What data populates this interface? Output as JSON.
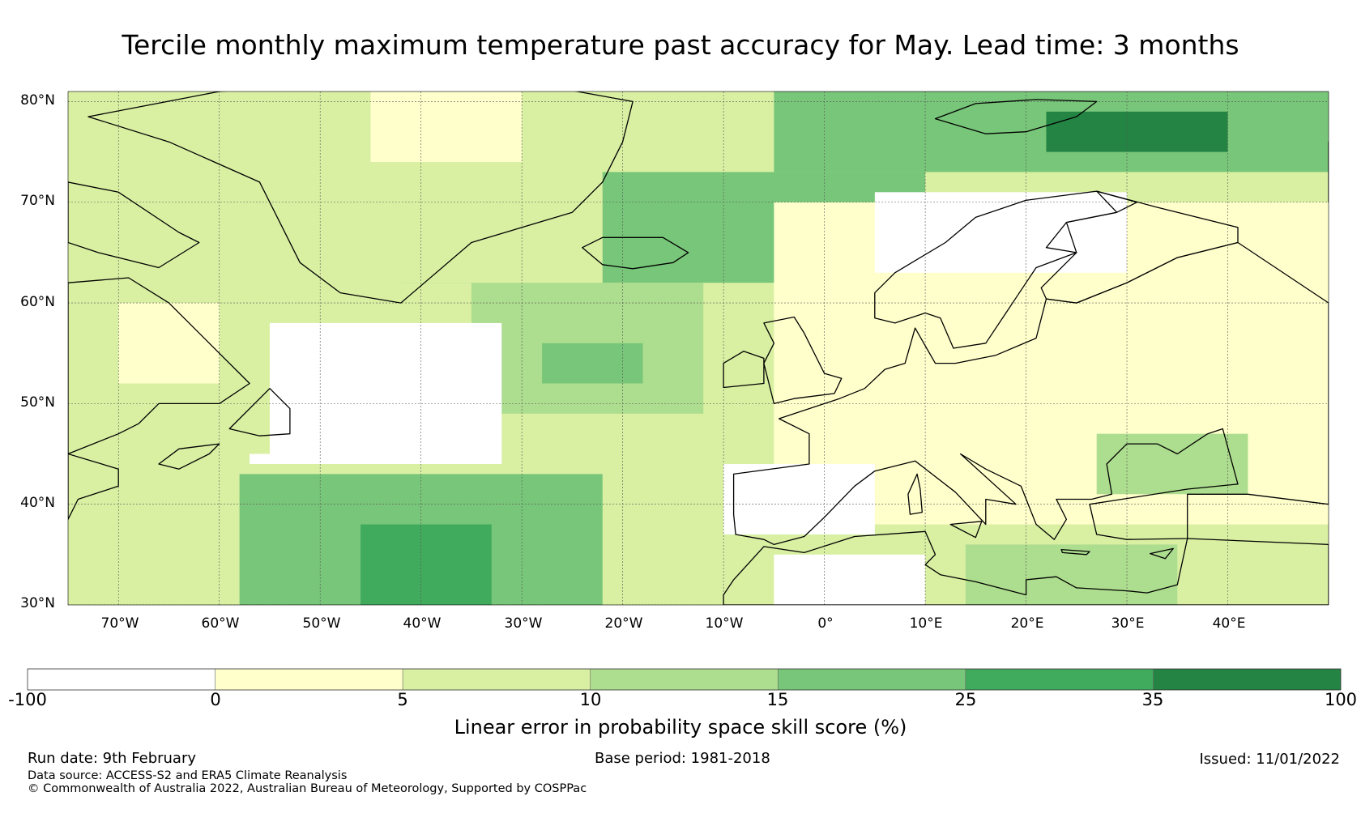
{
  "title": "Tercile monthly maximum temperature past accuracy for May. Lead time: 3 months",
  "map": {
    "extent": {
      "lon_min": -75,
      "lon_max": 50,
      "lat_min": 30,
      "lat_max": 81
    },
    "lat_labels": [
      "80°N",
      "70°N",
      "60°N",
      "50°N",
      "40°N",
      "30°N"
    ],
    "lon_labels": [
      "70°W",
      "60°W",
      "50°W",
      "40°W",
      "30°W",
      "20°W",
      "10°W",
      "0°",
      "10°E",
      "20°E",
      "30°E",
      "40°E"
    ],
    "regions": [
      {
        "name": "north-greenland-sea",
        "level": 4,
        "lon": [
          -5,
          50
        ],
        "lat": [
          73,
          81
        ]
      },
      {
        "name": "barents-core",
        "level": 6,
        "lon": [
          22,
          40
        ],
        "lat": [
          75,
          79
        ]
      },
      {
        "name": "east-greenland-band",
        "level": 4,
        "lon": [
          -42,
          10
        ],
        "lat": [
          62,
          73
        ]
      },
      {
        "name": "mid-atlantic",
        "level": 3,
        "lon": [
          -35,
          -12
        ],
        "lat": [
          49,
          62
        ]
      },
      {
        "name": "mid-atlantic-core",
        "level": 4,
        "lon": [
          -28,
          -18
        ],
        "lat": [
          52,
          56
        ]
      },
      {
        "name": "atlantic-white",
        "level": 0,
        "lon": [
          -57,
          -32
        ],
        "lat": [
          44,
          58
        ]
      },
      {
        "name": "subtropical-atlantic",
        "level": 4,
        "lon": [
          -58,
          -22
        ],
        "lat": [
          30,
          43
        ]
      },
      {
        "name": "subtropical-core",
        "level": 5,
        "lon": [
          -46,
          -33
        ],
        "lat": [
          30,
          38
        ]
      },
      {
        "name": "europe-yellow",
        "level": 1,
        "lon": [
          -5,
          50
        ],
        "lat": [
          38,
          70
        ]
      },
      {
        "name": "scandinavia-white",
        "level": 0,
        "lon": [
          5,
          30
        ],
        "lat": [
          63,
          71
        ]
      },
      {
        "name": "iberia-white",
        "level": 0,
        "lon": [
          -10,
          5
        ],
        "lat": [
          37,
          44
        ]
      },
      {
        "name": "north-africa-white",
        "level": 0,
        "lon": [
          -5,
          10
        ],
        "lat": [
          30,
          35
        ]
      },
      {
        "name": "med-east",
        "level": 3,
        "lon": [
          14,
          35
        ],
        "lat": [
          30,
          36
        ]
      },
      {
        "name": "black-sea",
        "level": 3,
        "lon": [
          27,
          42
        ],
        "lat": [
          41,
          47
        ]
      },
      {
        "name": "labrador",
        "level": 2,
        "lon": [
          -75,
          -55
        ],
        "lat": [
          45,
          81
        ]
      },
      {
        "name": "labrador-yellow",
        "level": 1,
        "lon": [
          -70,
          -60
        ],
        "lat": [
          52,
          60
        ]
      },
      {
        "name": "greenland-inland",
        "level": 2,
        "lon": [
          -55,
          -22
        ],
        "lat": [
          62,
          81
        ]
      },
      {
        "name": "greenland-yellow",
        "level": 1,
        "lon": [
          -45,
          -30
        ],
        "lat": [
          74,
          81
        ]
      }
    ],
    "land": [
      {
        "name": "greenland",
        "points": [
          [
            -73,
            78.5
          ],
          [
            -60,
            81
          ],
          [
            -45,
            82
          ],
          [
            -30,
            82
          ],
          [
            -19,
            80
          ],
          [
            -20,
            76
          ],
          [
            -22,
            72
          ],
          [
            -25,
            69
          ],
          [
            -35,
            66
          ],
          [
            -42,
            60
          ],
          [
            -48,
            61
          ],
          [
            -52,
            64
          ],
          [
            -54,
            68
          ],
          [
            -56,
            72
          ],
          [
            -65,
            76
          ]
        ]
      },
      {
        "name": "labrador-quebec",
        "points": [
          [
            -75,
            62
          ],
          [
            -69,
            62.5
          ],
          [
            -65,
            60
          ],
          [
            -61,
            56
          ],
          [
            -57,
            52
          ],
          [
            -60,
            50
          ],
          [
            -66,
            50
          ],
          [
            -68,
            48
          ],
          [
            -70,
            47
          ],
          [
            -75,
            45
          ]
        ]
      },
      {
        "name": "baffin",
        "points": [
          [
            -75,
            72
          ],
          [
            -70,
            71
          ],
          [
            -64,
            67
          ],
          [
            -62,
            66
          ],
          [
            -66,
            63.5
          ],
          [
            -72,
            65
          ],
          [
            -75,
            66
          ]
        ]
      },
      {
        "name": "nova-scotia",
        "points": [
          [
            -66,
            44
          ],
          [
            -64,
            45.5
          ],
          [
            -60,
            46
          ],
          [
            -61,
            45
          ],
          [
            -64,
            43.5
          ]
        ]
      },
      {
        "name": "newfoundland",
        "points": [
          [
            -59,
            47.5
          ],
          [
            -55,
            51.5
          ],
          [
            -53,
            49.5
          ],
          [
            -53,
            47
          ],
          [
            -56,
            46.8
          ]
        ]
      },
      {
        "name": "usa-coast",
        "points": [
          [
            -75,
            45
          ],
          [
            -70,
            43.5
          ],
          [
            -70,
            41.8
          ],
          [
            -74,
            40.5
          ],
          [
            -75,
            38.5
          ]
        ]
      },
      {
        "name": "iceland",
        "points": [
          [
            -24,
            65.5
          ],
          [
            -22,
            66.5
          ],
          [
            -16,
            66.5
          ],
          [
            -13.5,
            65
          ],
          [
            -15,
            64
          ],
          [
            -19,
            63.4
          ],
          [
            -22,
            63.8
          ]
        ]
      },
      {
        "name": "svalbard",
        "points": [
          [
            11,
            78.3
          ],
          [
            15,
            79.8
          ],
          [
            21,
            80.2
          ],
          [
            27,
            80
          ],
          [
            25,
            78.5
          ],
          [
            20,
            77
          ],
          [
            16,
            76.8
          ]
        ]
      },
      {
        "name": "scandinavia",
        "points": [
          [
            5,
            58.5
          ],
          [
            5,
            61
          ],
          [
            7,
            63
          ],
          [
            12,
            66
          ],
          [
            15,
            68.5
          ],
          [
            20,
            70.2
          ],
          [
            27,
            71.1
          ],
          [
            31,
            70
          ],
          [
            29,
            69
          ],
          [
            24,
            68
          ],
          [
            22,
            65.5
          ],
          [
            25,
            65
          ],
          [
            21,
            63.5
          ],
          [
            19,
            60.5
          ],
          [
            18,
            59
          ],
          [
            16,
            56
          ],
          [
            12.8,
            55.5
          ],
          [
            11.5,
            58.5
          ],
          [
            10,
            59
          ],
          [
            7,
            58
          ]
        ]
      },
      {
        "name": "finland-russia",
        "points": [
          [
            27,
            71.1
          ],
          [
            33,
            69.5
          ],
          [
            41,
            67.5
          ],
          [
            41,
            66
          ],
          [
            35,
            64.5
          ],
          [
            30,
            62
          ],
          [
            25,
            60
          ],
          [
            22,
            60.4
          ],
          [
            21.5,
            61.5
          ],
          [
            25,
            65
          ],
          [
            24,
            68
          ],
          [
            29,
            69
          ]
        ]
      },
      {
        "name": "britain",
        "points": [
          [
            -5,
            50
          ],
          [
            -6,
            54
          ],
          [
            -5,
            56
          ],
          [
            -6,
            58
          ],
          [
            -3,
            58.6
          ],
          [
            -2,
            57
          ],
          [
            0,
            53
          ],
          [
            1.7,
            52.5
          ],
          [
            1,
            51
          ],
          [
            -3,
            50.5
          ]
        ]
      },
      {
        "name": "ireland",
        "points": [
          [
            -10,
            51.6
          ],
          [
            -10,
            54
          ],
          [
            -8,
            55.2
          ],
          [
            -6,
            54.5
          ],
          [
            -6,
            52
          ]
        ]
      },
      {
        "name": "europe-main",
        "points": [
          [
            -4.5,
            48.5
          ],
          [
            -1.5,
            47
          ],
          [
            -1.5,
            44
          ],
          [
            -9,
            43
          ],
          [
            -9,
            39
          ],
          [
            -8.8,
            37
          ],
          [
            -6,
            36.5
          ],
          [
            -5,
            36
          ],
          [
            -2,
            36.8
          ],
          [
            0,
            38.7
          ],
          [
            3,
            41.8
          ],
          [
            5,
            43.3
          ],
          [
            9,
            44.3
          ],
          [
            13,
            41.2
          ],
          [
            16,
            38
          ],
          [
            16,
            40.5
          ],
          [
            19,
            40
          ],
          [
            13.5,
            45
          ],
          [
            16,
            43.5
          ],
          [
            19.5,
            41.8
          ],
          [
            21,
            38
          ],
          [
            22.8,
            36.5
          ],
          [
            24,
            38.5
          ],
          [
            23,
            40.5
          ],
          [
            26.5,
            40.5
          ],
          [
            28.5,
            41
          ],
          [
            28,
            44
          ],
          [
            30,
            46
          ],
          [
            33,
            46
          ],
          [
            35,
            45
          ],
          [
            38,
            47
          ],
          [
            39.5,
            47.5
          ],
          [
            41,
            42
          ],
          [
            36,
            41.5
          ],
          [
            26.3,
            40
          ],
          [
            27,
            37
          ],
          [
            30,
            36.5
          ],
          [
            36,
            36.6
          ],
          [
            36,
            41
          ],
          [
            42,
            41
          ],
          [
            50,
            40
          ],
          [
            50,
            60
          ],
          [
            41,
            66
          ],
          [
            35,
            64.5
          ],
          [
            30,
            62
          ],
          [
            25,
            60
          ],
          [
            22,
            60.4
          ],
          [
            21,
            56.5
          ],
          [
            17,
            54.8
          ],
          [
            13,
            54
          ],
          [
            11,
            54
          ],
          [
            9,
            57.5
          ],
          [
            8,
            54
          ],
          [
            6,
            53.4
          ],
          [
            4,
            51.5
          ],
          [
            1.5,
            50.5
          ],
          [
            -1.5,
            49.5
          ]
        ]
      },
      {
        "name": "north-africa",
        "points": [
          [
            -10,
            30
          ],
          [
            -10,
            31
          ],
          [
            -9,
            32.5
          ],
          [
            -6,
            35.8
          ],
          [
            -2,
            35.2
          ],
          [
            3,
            36.8
          ],
          [
            10,
            37.3
          ],
          [
            11,
            35
          ],
          [
            10,
            34
          ],
          [
            11.5,
            33
          ],
          [
            15,
            32.3
          ],
          [
            20,
            31
          ],
          [
            20,
            32.5
          ],
          [
            23,
            32.8
          ],
          [
            25,
            31.7
          ],
          [
            30,
            31.4
          ],
          [
            32,
            31.2
          ],
          [
            35,
            32
          ],
          [
            36,
            36.6
          ],
          [
            50,
            36
          ],
          [
            50,
            30
          ]
        ]
      },
      {
        "name": "sardinia-corsica",
        "points": [
          [
            8.5,
            39
          ],
          [
            8.3,
            41
          ],
          [
            9.2,
            43
          ],
          [
            9.5,
            41.5
          ],
          [
            9.7,
            39.2
          ]
        ]
      },
      {
        "name": "sicily",
        "points": [
          [
            12.5,
            38
          ],
          [
            15.6,
            38.3
          ],
          [
            15,
            36.7
          ]
        ]
      },
      {
        "name": "crete",
        "points": [
          [
            23.5,
            35.5
          ],
          [
            26.3,
            35.3
          ],
          [
            26,
            35
          ],
          [
            23.6,
            35.2
          ]
        ]
      },
      {
        "name": "cyprus",
        "points": [
          [
            32.3,
            35.1
          ],
          [
            34.6,
            35.6
          ],
          [
            33.8,
            34.6
          ]
        ]
      },
      {
        "name": "novaya-zemlya",
        "points": [
          [
            50,
            71
          ],
          [
            50,
            76
          ],
          [
            50,
            70
          ]
        ]
      }
    ]
  },
  "colorbar": {
    "ticks": [
      "-100",
      "0",
      "5",
      "10",
      "15",
      "25",
      "35",
      "100"
    ],
    "colors": [
      "#ffffff",
      "#ffffcc",
      "#d9f0a3",
      "#addd8e",
      "#78c679",
      "#41ab5d",
      "#238443"
    ],
    "label": "Linear error in probability space skill score (%)"
  },
  "footer": {
    "run_date": "Run date: 9th February",
    "base_period": "Base period: 1981-2018",
    "issued": "Issued: 11/01/2022",
    "data_source": "Data source: ACCESS-S2 and ERA5 Climate Reanalysis",
    "copyright": "© Commonwealth of Australia 2022, Australian Bureau of Meteorology, Supported by COSPPac"
  }
}
